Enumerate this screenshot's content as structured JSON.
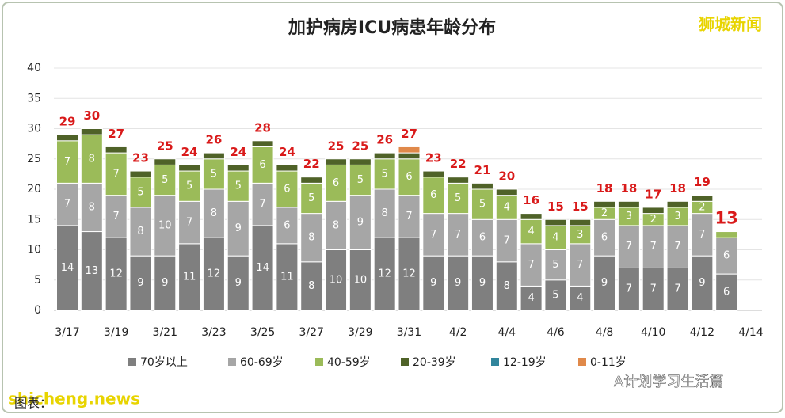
{
  "chart_data": {
    "type": "stacked_bar",
    "title": "加护病房ICU病患年龄分布",
    "categories": [
      "3/17",
      null,
      "3/19",
      null,
      "3/21",
      null,
      "3/23",
      null,
      "3/25",
      null,
      "3/27",
      null,
      "3/29",
      null,
      "3/31",
      null,
      "4/2",
      null,
      "4/4",
      null,
      "4/6",
      null,
      "4/8",
      null,
      "4/10",
      null,
      "4/12",
      null,
      "4/14"
    ],
    "series": [
      {
        "name": "70岁以上",
        "color": "#7f7f7f",
        "values": [
          14,
          13,
          12,
          9,
          9,
          11,
          12,
          9,
          14,
          11,
          8,
          10,
          10,
          12,
          12,
          9,
          9,
          9,
          8,
          4,
          5,
          4,
          9,
          7,
          7,
          7,
          9,
          6,
          null
        ]
      },
      {
        "name": "60-69岁",
        "color": "#a6a6a6",
        "values": [
          7,
          8,
          7,
          8,
          10,
          7,
          8,
          9,
          7,
          6,
          8,
          8,
          9,
          8,
          7,
          7,
          7,
          6,
          7,
          7,
          5,
          7,
          6,
          7,
          7,
          7,
          7,
          6,
          null
        ]
      },
      {
        "name": "40-59岁",
        "color": "#9bbb59",
        "values": [
          7,
          8,
          7,
          5,
          5,
          5,
          5,
          5,
          6,
          6,
          5,
          6,
          5,
          5,
          6,
          6,
          5,
          5,
          4,
          4,
          4,
          3,
          2,
          3,
          2,
          3,
          2,
          1,
          null
        ]
      },
      {
        "name": "20-39岁",
        "color": "#4f6228",
        "values": [
          1,
          1,
          1,
          1,
          1,
          1,
          1,
          1,
          1,
          1,
          1,
          1,
          1,
          1,
          1,
          1,
          1,
          1,
          1,
          1,
          1,
          1,
          1,
          1,
          1,
          1,
          1,
          0,
          null
        ]
      },
      {
        "name": "12-19岁",
        "color": "#31859c",
        "values": [
          0,
          0,
          0,
          0,
          0,
          0,
          0,
          0,
          0,
          0,
          0,
          0,
          0,
          0,
          0,
          0,
          0,
          0,
          0,
          0,
          0,
          0,
          0,
          0,
          0,
          0,
          0,
          0,
          null
        ]
      },
      {
        "name": "0-11岁",
        "color": "#e0894a",
        "values": [
          0,
          0,
          0,
          0,
          0,
          0,
          0,
          0,
          0,
          0,
          0,
          0,
          0,
          0,
          1,
          0,
          0,
          0,
          0,
          0,
          0,
          0,
          0,
          0,
          0,
          0,
          0,
          0,
          null
        ]
      }
    ],
    "totals": [
      29,
      30,
      27,
      23,
      25,
      24,
      26,
      24,
      28,
      24,
      22,
      25,
      25,
      26,
      27,
      23,
      22,
      21,
      20,
      16,
      15,
      15,
      18,
      18,
      17,
      18,
      19,
      13,
      null
    ],
    "total_color": "#d91a1a",
    "ylim": [
      0,
      40
    ],
    "yticks": [
      0,
      5,
      10,
      15,
      20,
      25,
      30,
      35,
      40
    ],
    "grid": true
  },
  "watermarks": {
    "top_right": "狮城新闻",
    "bottom_left": "shicheng.news",
    "source": "图表：",
    "bottom_right": "A计划学习生活篇"
  }
}
